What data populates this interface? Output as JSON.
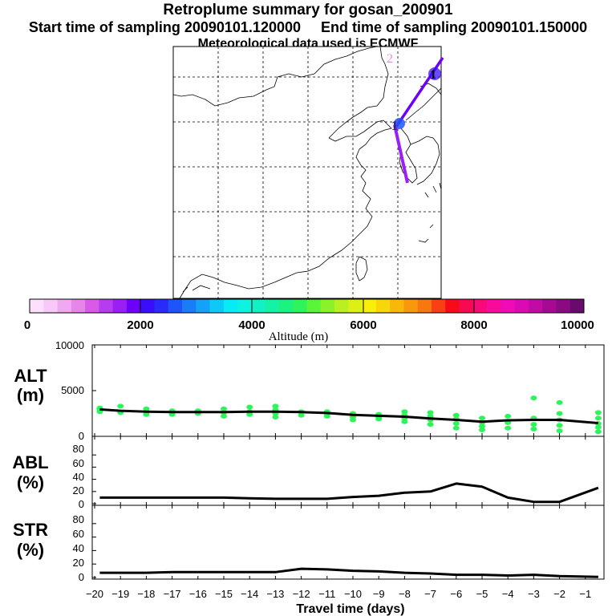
{
  "header": {
    "title": "Retroplume summary for gosan_200901",
    "subtitle_start": "Start time of sampling 20090101.120000",
    "subtitle_end": "End time of sampling 20090101.150000",
    "met": "Meteorological data used is ECMWF"
  },
  "map": {
    "labels": [
      {
        "text": "2",
        "color": "#e48be4"
      },
      {
        "text": "1",
        "color": "#000000"
      },
      {
        "text": "1",
        "color": "#3a1d8a"
      }
    ]
  },
  "colorbar": {
    "title": "Altitude (m)",
    "ticks": [
      "0",
      "2000",
      "4000",
      "6000",
      "8000",
      "10000"
    ],
    "colors": [
      "#fde0fd",
      "#f8c8f8",
      "#f0a8f0",
      "#e686ea",
      "#d85ae6",
      "#b63cf0",
      "#9a1ef6",
      "#6d00fa",
      "#3a0efb",
      "#2a2afb",
      "#1e54f8",
      "#1a7cf8",
      "#14a2f8",
      "#0ec8f8",
      "#05ecf6",
      "#0ef2e0",
      "#10f2c4",
      "#14f2a4",
      "#1cf280",
      "#2ef45c",
      "#5af43a",
      "#8cf228",
      "#b8f020",
      "#dcf014",
      "#f8f00a",
      "#f8d60a",
      "#f8b80a",
      "#f8980c",
      "#f87810",
      "#f84014",
      "#f80a1a",
      "#f80a52",
      "#f80a78",
      "#f80a9c",
      "#f00ab8",
      "#dc0ab4",
      "#c20aa4",
      "#a60a92",
      "#8a0a82",
      "#6a0a6e"
    ]
  },
  "chart_data": [
    {
      "type": "line+scatter",
      "panel": "ALT",
      "ylabel_line1": "ALT",
      "ylabel_line2": "(m)",
      "xlabel": "Travel time (days)",
      "ylim": [
        0,
        10000
      ],
      "yticks": [
        "0",
        "5000",
        "10000"
      ],
      "x": [
        -19.8,
        -19,
        -18,
        -17,
        -16,
        -15,
        -14,
        -13,
        -12,
        -11,
        -10,
        -9,
        -8,
        -7,
        -6,
        -5,
        -4,
        -3,
        -2,
        -0.5
      ],
      "mean_altitude": [
        2950,
        2800,
        2700,
        2650,
        2650,
        2650,
        2700,
        2700,
        2650,
        2550,
        2350,
        2250,
        2150,
        1950,
        1800,
        1600,
        1750,
        1800,
        1800,
        1450
      ],
      "particles": [
        {
          "x": -19.8,
          "y": [
            2700,
            3000,
            3100
          ]
        },
        {
          "x": -19.0,
          "y": [
            2600,
            3300
          ]
        },
        {
          "x": -18.0,
          "y": [
            2400,
            2700,
            3000
          ]
        },
        {
          "x": -17.0,
          "y": [
            2400,
            2800
          ]
        },
        {
          "x": -16.0,
          "y": [
            2500,
            2700,
            2800
          ]
        },
        {
          "x": -15.0,
          "y": [
            2200,
            2600,
            3000
          ]
        },
        {
          "x": -14.0,
          "y": [
            2400,
            2700,
            3200
          ]
        },
        {
          "x": -13.0,
          "y": [
            2100,
            2500,
            2900,
            3300
          ]
        },
        {
          "x": -12.0,
          "y": [
            2300,
            2700
          ]
        },
        {
          "x": -11.0,
          "y": [
            2200,
            2500,
            2700
          ]
        },
        {
          "x": -10.0,
          "y": [
            1800,
            2100,
            2500
          ]
        },
        {
          "x": -9.0,
          "y": [
            1900,
            2100,
            2400
          ]
        },
        {
          "x": -8.0,
          "y": [
            1600,
            2000,
            2300,
            2700
          ]
        },
        {
          "x": -7.0,
          "y": [
            1300,
            1800,
            2200,
            2600
          ]
        },
        {
          "x": -6.0,
          "y": [
            900,
            1400,
            1900,
            2300
          ]
        },
        {
          "x": -5.0,
          "y": [
            700,
            1100,
            1500,
            2000
          ]
        },
        {
          "x": -4.0,
          "y": [
            900,
            1500,
            2200
          ]
        },
        {
          "x": -3.0,
          "y": [
            800,
            1300,
            2000,
            4200
          ]
        },
        {
          "x": -2.0,
          "y": [
            600,
            1200,
            1800,
            2500,
            3700
          ]
        },
        {
          "x": -0.5,
          "y": [
            500,
            1000,
            1400,
            2000,
            2600
          ]
        }
      ]
    },
    {
      "type": "line",
      "panel": "ABL",
      "ylabel_line1": "ABL",
      "ylabel_line2": "(%)",
      "ylim": [
        0,
        100
      ],
      "yticks": [
        "0",
        "20",
        "40",
        "60",
        "80"
      ],
      "x": [
        -19.8,
        -19,
        -18,
        -17,
        -16,
        -15,
        -14,
        -13,
        -12,
        -11,
        -10,
        -9,
        -8,
        -7,
        -6,
        -5,
        -4,
        -3,
        -2,
        -0.5
      ],
      "values": [
        10,
        10,
        10,
        10,
        10,
        10,
        9,
        8,
        8,
        8,
        11,
        13,
        18,
        20,
        33,
        28,
        10,
        3,
        3,
        26
      ]
    },
    {
      "type": "line",
      "panel": "STR",
      "ylabel_line1": "STR",
      "ylabel_line2": "(%)",
      "ylim": [
        0,
        100
      ],
      "yticks": [
        "0",
        "20",
        "40",
        "60",
        "80"
      ],
      "x": [
        -19.8,
        -19,
        -18,
        -17,
        -16,
        -15,
        -14,
        -13,
        -12,
        -11,
        -10,
        -9,
        -8,
        -7,
        -6,
        -5,
        -4,
        -3,
        -2,
        -0.5
      ],
      "values": [
        7,
        7,
        7,
        8,
        8,
        8,
        8,
        8,
        13,
        12,
        10,
        9,
        7,
        6,
        4,
        4,
        3,
        4,
        2,
        1
      ]
    }
  ],
  "xaxis": {
    "ticks": [
      "−20",
      "−19",
      "−18",
      "−17",
      "−16",
      "−15",
      "−14",
      "−13",
      "−12",
      "−11",
      "−10",
      "−9",
      "−8",
      "−7",
      "−6",
      "−5",
      "−4",
      "−3",
      "−2",
      "−1"
    ],
    "tick_values": [
      -20,
      -19,
      -18,
      -17,
      -16,
      -15,
      -14,
      -13,
      -12,
      -11,
      -10,
      -9,
      -8,
      -7,
      -6,
      -5,
      -4,
      -3,
      -2,
      -1
    ]
  }
}
